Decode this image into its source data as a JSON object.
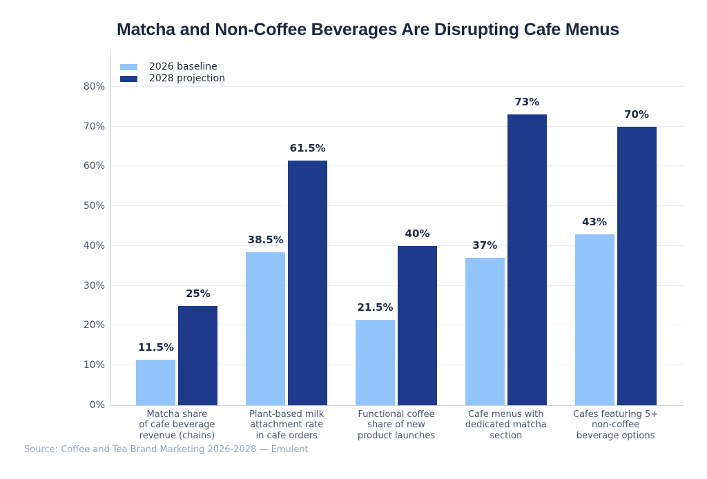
{
  "title": "Matcha and Non-Coffee Beverages Are Disrupting Cafe Menus",
  "source_note": "Source: Coffee and Tea Brand Marketing 2026-2028 — Emulent",
  "chart_data": {
    "type": "bar",
    "title": "Matcha and Non-Coffee Beverages Are Disrupting Cafe Menus",
    "categories": [
      "Matcha share\nof cafe beverage\nrevenue (chains)",
      "Plant-based milk\nattachment rate\nin cafe orders",
      "Functional coffee\nshare of new\nproduct launches",
      "Cafe menus with\ndedicated matcha\nsection",
      "Cafes featuring 5+\nnon-coffee\nbeverage options"
    ],
    "series": [
      {
        "name": "2026 baseline",
        "color": "#93c5fd",
        "values": [
          11.5,
          38.5,
          21.5,
          37,
          43
        ],
        "labels": [
          "11.5%",
          "38.5%",
          "21.5%",
          "37%",
          "43%"
        ]
      },
      {
        "name": "2028 projection",
        "color": "#1e3a8a",
        "values": [
          25,
          61.5,
          40,
          73,
          70
        ],
        "labels": [
          "25%",
          "61.5%",
          "40%",
          "73%",
          "70%"
        ]
      }
    ],
    "xlabel": "",
    "ylabel": "",
    "ylim": [
      0,
      88.8
    ],
    "yticks": [
      0,
      10,
      20,
      30,
      40,
      50,
      60,
      70,
      80
    ],
    "ytick_labels": [
      "0%",
      "10%",
      "20%",
      "30%",
      "40%",
      "50%",
      "60%",
      "70%",
      "80%"
    ],
    "grid": "horizontal",
    "legend_position": "top-left",
    "value_labels_shown": true
  }
}
